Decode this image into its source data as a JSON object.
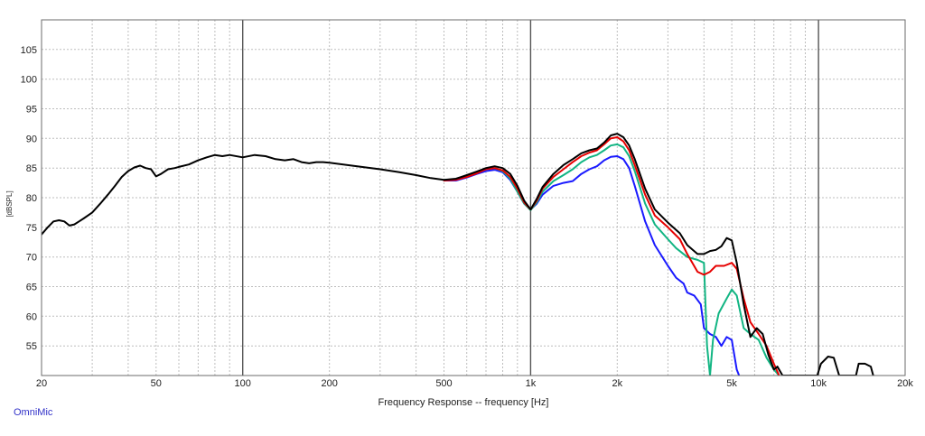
{
  "footer": {
    "brand": "OmniMic"
  },
  "colors": {
    "background": "#ffffff",
    "frame": "#6b6b6b",
    "grid_major": "#555555",
    "grid_minor": "#bdbdbd",
    "text": "#222222",
    "brand": "#3030c8"
  },
  "chart_data": {
    "type": "line",
    "title": "",
    "xlabel": "Frequency Response -- frequency [Hz]",
    "ylabel": "[dBSPL]",
    "x_scale": "log",
    "xlim": [
      20,
      20000
    ],
    "ylim": [
      50,
      110
    ],
    "grid": true,
    "legend": "none",
    "x_ticks": [
      20,
      50,
      100,
      200,
      500,
      1000,
      2000,
      5000,
      10000,
      20000
    ],
    "x_tick_labels": [
      "20",
      "50",
      "100",
      "200",
      "500",
      "1k",
      "2k",
      "5k",
      "10k",
      "20k"
    ],
    "y_ticks": [
      55,
      60,
      65,
      70,
      75,
      80,
      85,
      90,
      95,
      100,
      105
    ],
    "y_tick_labels": [
      "55",
      "60",
      "65",
      "70",
      "75",
      "80",
      "85",
      "90",
      "95",
      "100",
      "105"
    ],
    "series": [
      {
        "color": "#1a1aff",
        "points": [
          [
            500,
            82.9
          ],
          [
            550,
            82.9
          ],
          [
            600,
            83.4
          ],
          [
            650,
            84.0
          ],
          [
            700,
            84.5
          ],
          [
            750,
            84.7
          ],
          [
            800,
            84.3
          ],
          [
            850,
            83.0
          ],
          [
            900,
            81.0
          ],
          [
            950,
            79.0
          ],
          [
            1000,
            78.0
          ],
          [
            1050,
            79.0
          ],
          [
            1100,
            80.5
          ],
          [
            1200,
            82.0
          ],
          [
            1300,
            82.5
          ],
          [
            1400,
            82.8
          ],
          [
            1500,
            84.0
          ],
          [
            1600,
            84.8
          ],
          [
            1700,
            85.3
          ],
          [
            1800,
            86.3
          ],
          [
            1900,
            86.9
          ],
          [
            2000,
            87.0
          ],
          [
            2100,
            86.5
          ],
          [
            2200,
            85.0
          ],
          [
            2300,
            82.0
          ],
          [
            2500,
            76.0
          ],
          [
            2700,
            72.0
          ],
          [
            3000,
            68.5
          ],
          [
            3200,
            66.5
          ],
          [
            3400,
            65.5
          ],
          [
            3500,
            64.0
          ],
          [
            3700,
            63.5
          ],
          [
            3900,
            62.0
          ],
          [
            4000,
            58.0
          ],
          [
            4200,
            57.0
          ],
          [
            4400,
            56.5
          ],
          [
            4600,
            55.0
          ],
          [
            4800,
            56.5
          ],
          [
            5000,
            56.0
          ],
          [
            5200,
            51.0
          ],
          [
            5300,
            50.0
          ]
        ]
      },
      {
        "color": "#12b583",
        "points": [
          [
            500,
            83.0
          ],
          [
            550,
            83.1
          ],
          [
            600,
            83.6
          ],
          [
            650,
            84.2
          ],
          [
            700,
            84.8
          ],
          [
            750,
            85.0
          ],
          [
            800,
            84.5
          ],
          [
            850,
            83.2
          ],
          [
            900,
            81.0
          ],
          [
            950,
            79.0
          ],
          [
            1000,
            77.9
          ],
          [
            1050,
            79.2
          ],
          [
            1100,
            81.0
          ],
          [
            1200,
            82.8
          ],
          [
            1300,
            83.8
          ],
          [
            1400,
            84.8
          ],
          [
            1500,
            86.0
          ],
          [
            1600,
            86.8
          ],
          [
            1700,
            87.2
          ],
          [
            1800,
            88.0
          ],
          [
            1900,
            88.8
          ],
          [
            2000,
            89.0
          ],
          [
            2100,
            88.5
          ],
          [
            2200,
            87.0
          ],
          [
            2300,
            84.5
          ],
          [
            2500,
            79.0
          ],
          [
            2700,
            75.5
          ],
          [
            3000,
            73.0
          ],
          [
            3200,
            71.5
          ],
          [
            3500,
            70.0
          ],
          [
            3800,
            69.5
          ],
          [
            4000,
            69.0
          ],
          [
            4100,
            55.0
          ],
          [
            4200,
            50.0
          ],
          [
            4300,
            56.0
          ],
          [
            4500,
            60.5
          ],
          [
            4800,
            63.0
          ],
          [
            5000,
            64.5
          ],
          [
            5200,
            63.5
          ],
          [
            5500,
            58.0
          ],
          [
            5800,
            57.0
          ],
          [
            6200,
            56.0
          ],
          [
            6600,
            53.0
          ],
          [
            7000,
            51.0
          ],
          [
            7300,
            50.0
          ]
        ]
      },
      {
        "color": "#e60000",
        "points": [
          [
            500,
            82.9
          ],
          [
            550,
            83.0
          ],
          [
            600,
            83.5
          ],
          [
            650,
            84.1
          ],
          [
            700,
            84.8
          ],
          [
            750,
            85.0
          ],
          [
            800,
            84.6
          ],
          [
            850,
            83.5
          ],
          [
            900,
            81.5
          ],
          [
            950,
            79.2
          ],
          [
            1000,
            78.0
          ],
          [
            1050,
            79.5
          ],
          [
            1100,
            81.5
          ],
          [
            1200,
            83.5
          ],
          [
            1300,
            84.8
          ],
          [
            1400,
            86.0
          ],
          [
            1500,
            87.0
          ],
          [
            1600,
            87.6
          ],
          [
            1700,
            88.0
          ],
          [
            1800,
            89.0
          ],
          [
            1900,
            90.0
          ],
          [
            2000,
            90.2
          ],
          [
            2100,
            89.5
          ],
          [
            2200,
            88.0
          ],
          [
            2300,
            85.5
          ],
          [
            2500,
            80.5
          ],
          [
            2700,
            77.0
          ],
          [
            3000,
            75.0
          ],
          [
            3300,
            73.0
          ],
          [
            3500,
            70.5
          ],
          [
            3800,
            67.5
          ],
          [
            4000,
            67.0
          ],
          [
            4200,
            67.5
          ],
          [
            4400,
            68.5
          ],
          [
            4700,
            68.5
          ],
          [
            5000,
            69.0
          ],
          [
            5200,
            68.0
          ],
          [
            5500,
            63.0
          ],
          [
            5800,
            59.0
          ],
          [
            6200,
            57.0
          ],
          [
            6600,
            55.0
          ],
          [
            7000,
            52.0
          ],
          [
            7300,
            50.0
          ]
        ]
      },
      {
        "color": "#000000",
        "points": [
          [
            20,
            73.8
          ],
          [
            21,
            75.0
          ],
          [
            22,
            76.0
          ],
          [
            23,
            76.2
          ],
          [
            24,
            76.0
          ],
          [
            25,
            75.3
          ],
          [
            26,
            75.5
          ],
          [
            27,
            76.0
          ],
          [
            28,
            76.5
          ],
          [
            30,
            77.5
          ],
          [
            32,
            79.0
          ],
          [
            34,
            80.5
          ],
          [
            36,
            82.0
          ],
          [
            38,
            83.5
          ],
          [
            40,
            84.5
          ],
          [
            42,
            85.1
          ],
          [
            44,
            85.4
          ],
          [
            46,
            85.0
          ],
          [
            48,
            84.8
          ],
          [
            50,
            83.6
          ],
          [
            52,
            84.0
          ],
          [
            55,
            84.8
          ],
          [
            58,
            85.0
          ],
          [
            60,
            85.2
          ],
          [
            65,
            85.6
          ],
          [
            70,
            86.3
          ],
          [
            75,
            86.8
          ],
          [
            80,
            87.2
          ],
          [
            85,
            87.0
          ],
          [
            90,
            87.2
          ],
          [
            100,
            86.8
          ],
          [
            110,
            87.2
          ],
          [
            120,
            87.0
          ],
          [
            130,
            86.5
          ],
          [
            140,
            86.3
          ],
          [
            150,
            86.5
          ],
          [
            160,
            86.0
          ],
          [
            170,
            85.8
          ],
          [
            180,
            86.0
          ],
          [
            190,
            86.0
          ],
          [
            200,
            85.9
          ],
          [
            250,
            85.3
          ],
          [
            300,
            84.8
          ],
          [
            350,
            84.3
          ],
          [
            400,
            83.8
          ],
          [
            450,
            83.3
          ],
          [
            500,
            83.0
          ],
          [
            550,
            83.2
          ],
          [
            600,
            83.8
          ],
          [
            650,
            84.4
          ],
          [
            700,
            85.0
          ],
          [
            750,
            85.3
          ],
          [
            800,
            85.0
          ],
          [
            850,
            84.0
          ],
          [
            900,
            82.0
          ],
          [
            950,
            79.5
          ],
          [
            1000,
            78.0
          ],
          [
            1050,
            79.8
          ],
          [
            1100,
            81.8
          ],
          [
            1200,
            84.0
          ],
          [
            1300,
            85.5
          ],
          [
            1400,
            86.5
          ],
          [
            1500,
            87.5
          ],
          [
            1600,
            88.0
          ],
          [
            1700,
            88.3
          ],
          [
            1800,
            89.3
          ],
          [
            1900,
            90.5
          ],
          [
            2000,
            90.8
          ],
          [
            2100,
            90.2
          ],
          [
            2200,
            88.8
          ],
          [
            2300,
            86.5
          ],
          [
            2500,
            81.5
          ],
          [
            2700,
            78.0
          ],
          [
            3000,
            75.8
          ],
          [
            3300,
            74.0
          ],
          [
            3500,
            72.0
          ],
          [
            3800,
            70.5
          ],
          [
            4000,
            70.5
          ],
          [
            4200,
            71.0
          ],
          [
            4400,
            71.2
          ],
          [
            4600,
            71.8
          ],
          [
            4800,
            73.2
          ],
          [
            5000,
            72.8
          ],
          [
            5200,
            69.0
          ],
          [
            5500,
            62.0
          ],
          [
            5800,
            56.5
          ],
          [
            6100,
            58.0
          ],
          [
            6400,
            57.0
          ],
          [
            6700,
            53.5
          ],
          [
            7000,
            51.0
          ],
          [
            7200,
            51.5
          ],
          [
            7500,
            50.0
          ],
          [
            9900,
            50.0
          ],
          [
            10200,
            52.0
          ],
          [
            10800,
            53.2
          ],
          [
            11300,
            53.0
          ],
          [
            11800,
            50.0
          ],
          [
            13500,
            50.0
          ],
          [
            13800,
            52.0
          ],
          [
            14500,
            52.0
          ],
          [
            15200,
            51.5
          ],
          [
            15500,
            50.0
          ]
        ]
      }
    ]
  }
}
